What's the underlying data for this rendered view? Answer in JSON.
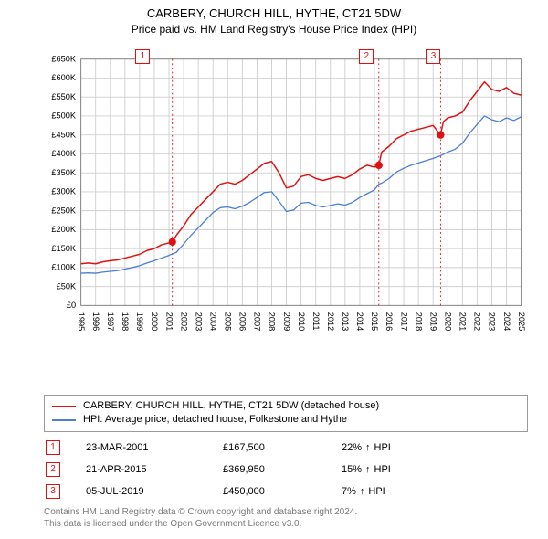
{
  "title": "CARBERY, CHURCH HILL, HYTHE, CT21 5DW",
  "subtitle": "Price paid vs. HM Land Registry's House Price Index (HPI)",
  "chart": {
    "type": "line",
    "background_color": "#ffffff",
    "grid_color": "#cfcfcf",
    "axis_color": "#808080",
    "tick_fontsize": 10,
    "tick_color": "#000000",
    "y": {
      "min": 0,
      "max": 650000,
      "step": 50000,
      "labels": [
        "£0",
        "£50K",
        "£100K",
        "£150K",
        "£200K",
        "£250K",
        "£300K",
        "£350K",
        "£400K",
        "£450K",
        "£500K",
        "£550K",
        "£600K",
        "£650K"
      ]
    },
    "x": {
      "min": 1995,
      "max": 2025,
      "step": 1,
      "labels": [
        "1995",
        "1996",
        "1997",
        "1998",
        "1999",
        "2000",
        "2001",
        "2002",
        "2003",
        "2004",
        "2005",
        "2006",
        "2007",
        "2008",
        "2009",
        "2010",
        "2011",
        "2012",
        "2013",
        "2014",
        "2015",
        "2016",
        "2017",
        "2018",
        "2019",
        "2020",
        "2021",
        "2022",
        "2023",
        "2024",
        "2025"
      ]
    },
    "series": [
      {
        "key": "property",
        "label": "CARBERY, CHURCH HILL, HYTHE, CT21 5DW (detached house)",
        "color": "#e01010",
        "line_width": 1.6,
        "points": [
          [
            1995.0,
            110000
          ],
          [
            1995.5,
            112000
          ],
          [
            1996.0,
            110000
          ],
          [
            1996.5,
            115000
          ],
          [
            1997.0,
            118000
          ],
          [
            1997.5,
            120000
          ],
          [
            1998.0,
            125000
          ],
          [
            1998.5,
            130000
          ],
          [
            1999.0,
            135000
          ],
          [
            1999.5,
            145000
          ],
          [
            2000.0,
            150000
          ],
          [
            2000.5,
            160000
          ],
          [
            2001.0,
            165000
          ],
          [
            2001.23,
            167500
          ],
          [
            2001.5,
            185000
          ],
          [
            2002.0,
            210000
          ],
          [
            2002.5,
            240000
          ],
          [
            2003.0,
            260000
          ],
          [
            2003.5,
            280000
          ],
          [
            2004.0,
            300000
          ],
          [
            2004.5,
            320000
          ],
          [
            2005.0,
            325000
          ],
          [
            2005.5,
            320000
          ],
          [
            2006.0,
            330000
          ],
          [
            2006.5,
            345000
          ],
          [
            2007.0,
            360000
          ],
          [
            2007.5,
            375000
          ],
          [
            2008.0,
            380000
          ],
          [
            2008.5,
            350000
          ],
          [
            2009.0,
            310000
          ],
          [
            2009.5,
            315000
          ],
          [
            2010.0,
            340000
          ],
          [
            2010.5,
            345000
          ],
          [
            2011.0,
            335000
          ],
          [
            2011.5,
            330000
          ],
          [
            2012.0,
            335000
          ],
          [
            2012.5,
            340000
          ],
          [
            2013.0,
            335000
          ],
          [
            2013.5,
            345000
          ],
          [
            2014.0,
            360000
          ],
          [
            2014.5,
            370000
          ],
          [
            2015.0,
            365000
          ],
          [
            2015.3,
            369950
          ],
          [
            2015.5,
            405000
          ],
          [
            2016.0,
            420000
          ],
          [
            2016.5,
            440000
          ],
          [
            2017.0,
            450000
          ],
          [
            2017.5,
            460000
          ],
          [
            2018.0,
            465000
          ],
          [
            2018.5,
            470000
          ],
          [
            2019.0,
            475000
          ],
          [
            2019.5,
            450000
          ],
          [
            2019.7,
            485000
          ],
          [
            2020.0,
            495000
          ],
          [
            2020.5,
            500000
          ],
          [
            2021.0,
            510000
          ],
          [
            2021.5,
            540000
          ],
          [
            2022.0,
            565000
          ],
          [
            2022.5,
            590000
          ],
          [
            2023.0,
            570000
          ],
          [
            2023.5,
            565000
          ],
          [
            2024.0,
            575000
          ],
          [
            2024.5,
            560000
          ],
          [
            2025.0,
            555000
          ]
        ]
      },
      {
        "key": "hpi",
        "label": "HPI: Average price, detached house, Folkestone and Hythe",
        "color": "#4a7fd6",
        "line_width": 1.4,
        "points": [
          [
            1995.0,
            85000
          ],
          [
            1995.5,
            86000
          ],
          [
            1996.0,
            85000
          ],
          [
            1996.5,
            88000
          ],
          [
            1997.0,
            90000
          ],
          [
            1997.5,
            92000
          ],
          [
            1998.0,
            96000
          ],
          [
            1998.5,
            100000
          ],
          [
            1999.0,
            105000
          ],
          [
            1999.5,
            112000
          ],
          [
            2000.0,
            118000
          ],
          [
            2000.5,
            125000
          ],
          [
            2001.0,
            132000
          ],
          [
            2001.5,
            140000
          ],
          [
            2002.0,
            162000
          ],
          [
            2002.5,
            185000
          ],
          [
            2003.0,
            205000
          ],
          [
            2003.5,
            225000
          ],
          [
            2004.0,
            245000
          ],
          [
            2004.5,
            258000
          ],
          [
            2005.0,
            260000
          ],
          [
            2005.5,
            255000
          ],
          [
            2006.0,
            262000
          ],
          [
            2006.5,
            272000
          ],
          [
            2007.0,
            285000
          ],
          [
            2007.5,
            298000
          ],
          [
            2008.0,
            300000
          ],
          [
            2008.5,
            275000
          ],
          [
            2009.0,
            248000
          ],
          [
            2009.5,
            252000
          ],
          [
            2010.0,
            270000
          ],
          [
            2010.5,
            272000
          ],
          [
            2011.0,
            264000
          ],
          [
            2011.5,
            260000
          ],
          [
            2012.0,
            264000
          ],
          [
            2012.5,
            268000
          ],
          [
            2013.0,
            265000
          ],
          [
            2013.5,
            272000
          ],
          [
            2014.0,
            285000
          ],
          [
            2014.5,
            295000
          ],
          [
            2015.0,
            305000
          ],
          [
            2015.3,
            320000
          ],
          [
            2015.5,
            323000
          ],
          [
            2016.0,
            335000
          ],
          [
            2016.5,
            352000
          ],
          [
            2017.0,
            362000
          ],
          [
            2017.5,
            370000
          ],
          [
            2018.0,
            376000
          ],
          [
            2018.5,
            382000
          ],
          [
            2019.0,
            388000
          ],
          [
            2019.5,
            395000
          ],
          [
            2020.0,
            405000
          ],
          [
            2020.5,
            412000
          ],
          [
            2021.0,
            428000
          ],
          [
            2021.5,
            455000
          ],
          [
            2022.0,
            478000
          ],
          [
            2022.5,
            500000
          ],
          [
            2023.0,
            490000
          ],
          [
            2023.5,
            485000
          ],
          [
            2024.0,
            495000
          ],
          [
            2024.5,
            488000
          ],
          [
            2025.0,
            498000
          ]
        ]
      }
    ],
    "marker_lines": {
      "color": "#e01010",
      "dash": "2,3",
      "width": 1,
      "events": [
        {
          "n": "1",
          "x": 2001.23,
          "y": 167500
        },
        {
          "n": "2",
          "x": 2015.3,
          "y": 369950
        },
        {
          "n": "3",
          "x": 2019.51,
          "y": 450000
        }
      ]
    }
  },
  "legend": {
    "rows": [
      {
        "color": "#e01010",
        "label": "CARBERY, CHURCH HILL, HYTHE, CT21 5DW (detached house)"
      },
      {
        "color": "#4a7fd6",
        "label": "HPI: Average price, detached house, Folkestone and Hythe"
      }
    ]
  },
  "transactions": [
    {
      "n": "1",
      "date": "23-MAR-2001",
      "price": "£167,500",
      "diff": "22%",
      "arrow": "↑",
      "suffix": "HPI"
    },
    {
      "n": "2",
      "date": "21-APR-2015",
      "price": "£369,950",
      "diff": "15%",
      "arrow": "↑",
      "suffix": "HPI"
    },
    {
      "n": "3",
      "date": "05-JUL-2019",
      "price": "£450,000",
      "diff": "7%",
      "arrow": "↑",
      "suffix": "HPI"
    }
  ],
  "footer": {
    "line1": "Contains HM Land Registry data © Crown copyright and database right 2024.",
    "line2": "This data is licensed under the Open Government Licence v3.0."
  }
}
